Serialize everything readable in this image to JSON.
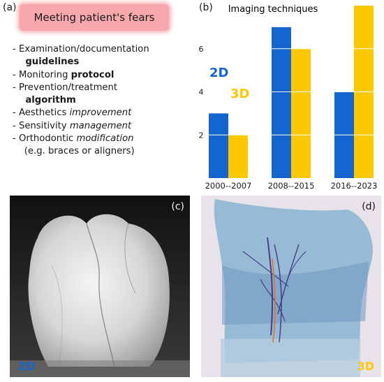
{
  "panel_a": {
    "label": "(a)",
    "box_text": "Meeting patient's fears",
    "items": [
      {
        "parts": [
          {
            "t": "- Examination/documentation",
            "s": "n"
          }
        ]
      },
      {
        "parts": [
          {
            "t": "  guidelines",
            "s": "b"
          }
        ]
      },
      {
        "parts": [
          {
            "t": "- Monitoring ",
            "s": "n"
          },
          {
            "t": "protocol",
            "s": "b"
          }
        ]
      },
      {
        "parts": [
          {
            "t": "- Prevention/treatment",
            "s": "n"
          }
        ]
      },
      {
        "parts": [
          {
            "t": "  algorithm",
            "s": "b"
          }
        ]
      },
      {
        "parts": [
          {
            "t": "- Aesthetics ",
            "s": "n"
          },
          {
            "t": "improvement",
            "s": "i"
          }
        ]
      },
      {
        "parts": [
          {
            "t": "- Sensitivity ",
            "s": "n"
          },
          {
            "t": "management",
            "s": "i"
          }
        ]
      },
      {
        "parts": [
          {
            "t": "- Orthodontic ",
            "s": "n"
          },
          {
            "t": "modification",
            "s": "i"
          }
        ]
      },
      {
        "parts": [
          {
            "t": "  (e.g. braces or aligners)",
            "s": "n"
          }
        ]
      }
    ]
  },
  "panel_b": {
    "label": "(b)",
    "legend_2d": "2D",
    "legend_3d": "3D"
  },
  "chart_data": {
    "type": "bar",
    "title": "Imaging techniques",
    "categories": [
      "2000--2007",
      "2008--2015",
      "2016--2023"
    ],
    "series": [
      {
        "name": "2D",
        "values": [
          3,
          7,
          4
        ],
        "color": "#1565d0"
      },
      {
        "name": "3D",
        "values": [
          2,
          6,
          8
        ],
        "color": "#fcc800"
      }
    ],
    "yticks": [
      2,
      4,
      6
    ],
    "ylim": [
      0,
      8
    ],
    "grid": true,
    "legend_placement": "left"
  },
  "panel_c": {
    "label": "(c)",
    "tag": "2D",
    "tag_color": "#1565d0"
  },
  "panel_d": {
    "label": "(d)",
    "tag": "3D",
    "tag_color": "#fcc800"
  }
}
